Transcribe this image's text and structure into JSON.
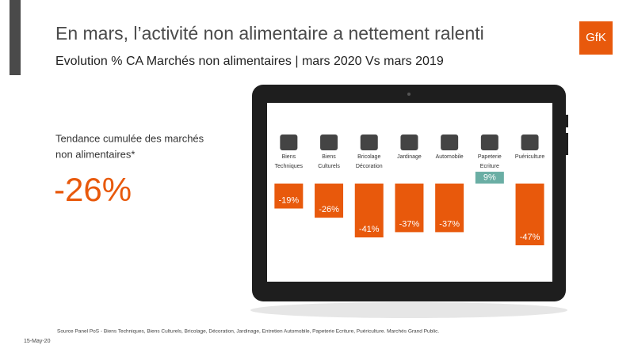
{
  "slide": {
    "title": "En mars, l’activité non alimentaire a nettement ralenti",
    "subtitle": "Evolution % CA Marchés non alimentaires | mars 2020 Vs mars 2019",
    "side_label_1": "Tendance cumulée des marchés",
    "side_label_2": "non alimentaires*",
    "headline": "-26%",
    "logo": "GfK",
    "source": "Source Panel PoS - Biens Techniques, Biens Culturels, Bricolage, Décoration, Jardinage, Entretien Automobile, Papeterie Ecriture, Puériculture. Marchés Grand Public.",
    "date": "15-May-20"
  },
  "chart_data": {
    "type": "bar",
    "categories": [
      "Biens Techniques",
      "Biens Culturels",
      "Bricolage Décoration",
      "Jardinage",
      "Automobile",
      "Papeterie Ecriture",
      "Puériculture"
    ],
    "values": [
      -19,
      -26,
      -41,
      -37,
      -37,
      9,
      -47
    ],
    "value_labels": [
      "-19%",
      "-26%",
      "-41%",
      "-37%",
      "-37%",
      "9%",
      "-47%"
    ],
    "colors": [
      "#e8590c",
      "#e8590c",
      "#e8590c",
      "#e8590c",
      "#e8590c",
      "#6aaea4",
      "#e8590c"
    ],
    "ylim": [
      -50,
      10
    ]
  }
}
